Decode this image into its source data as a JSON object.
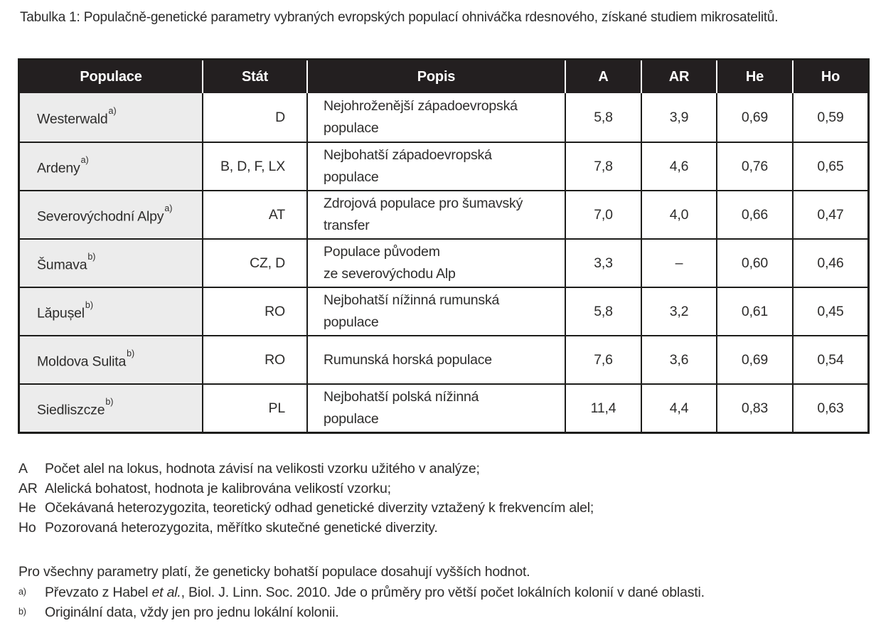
{
  "caption": "Tabulka 1: Populačně-genetické parametry vybraných evropských populací ohniváčka rdesnového, získané studiem mikrosatelitů.",
  "table": {
    "columns": [
      "Populace",
      "Stát",
      "Popis",
      "A",
      "AR",
      "He",
      "Ho"
    ],
    "rows": [
      {
        "population": "Westerwald",
        "note": "a)",
        "stat": "D",
        "popis": "Nejohroženější západoevropská\npopulace",
        "A": "5,8",
        "AR": "3,9",
        "He": "0,69",
        "Ho": "0,59"
      },
      {
        "population": "Ardeny",
        "note": "a)",
        "stat": "B, D, F, LX",
        "popis": "Nejbohatší západoevropská\npopulace",
        "A": "7,8",
        "AR": "4,6",
        "He": "0,76",
        "Ho": "0,65"
      },
      {
        "population": "Severovýchodní Alpy",
        "note": "a)",
        "stat": "AT",
        "popis": "Zdrojová populace pro šumavský\ntransfer",
        "A": "7,0",
        "AR": "4,0",
        "He": "0,66",
        "Ho": "0,47"
      },
      {
        "population": "Šumava",
        "note": "b)",
        "stat": "CZ, D",
        "popis": "Populace původem\nze severovýchodu Alp",
        "A": "3,3",
        "AR": "–",
        "He": "0,60",
        "Ho": "0,46"
      },
      {
        "population": "Lăpușel",
        "note": "b)",
        "stat": "RO",
        "popis": "Nejbohatší nížinná rumunská\npopulace",
        "A": "5,8",
        "AR": "3,2",
        "He": "0,61",
        "Ho": "0,45"
      },
      {
        "population": "Moldova Sulita",
        "note": "b)",
        "stat": "RO",
        "popis": "Rumunská horská populace",
        "A": "7,6",
        "AR": "3,6",
        "He": "0,69",
        "Ho": "0,54"
      },
      {
        "population": "Siedliszcze",
        "note": "b)",
        "stat": "PL",
        "popis": "Nejbohatší polská nížinná\npopulace",
        "A": "11,4",
        "AR": "4,4",
        "He": "0,83",
        "Ho": "0,63"
      }
    ]
  },
  "legend": [
    {
      "label": "A",
      "text": "Počet alel na lokus, hodnota závisí na velikosti vzorku užitého v analýze;"
    },
    {
      "label": "AR",
      "text": "Alelická bohatost, hodnota je kalibrována velikostí vzorku;"
    },
    {
      "label": "He",
      "text": "Očekávaná heterozygozita, teoretický odhad genetické diverzity vztažený k frekvencím alel;"
    },
    {
      "label": "Ho",
      "text": "Pozorovaná heterozygozita, měřítko skutečné genetické diverzity."
    }
  ],
  "footer": {
    "summary": "Pro všechny parametry platí, že geneticky bohatší populace dosahují vyšších hodnot.",
    "footnotes": [
      {
        "marker": "a)",
        "text_before": "Převzato z Habel ",
        "italic": "et al.",
        "text_after": ", Biol. J. Linn. Soc. 2010. Jde o průměry pro větší počet lokálních kolonií v dané oblasti."
      },
      {
        "marker": "b)",
        "text_before": "Originální data, vždy jen pro jednu lokální kolonii.",
        "italic": "",
        "text_after": ""
      }
    ]
  },
  "colors": {
    "header_bg": "#231f20",
    "row_label_bg": "#ececec",
    "border": "#1d1d1b",
    "text": "#2d2c2b"
  }
}
